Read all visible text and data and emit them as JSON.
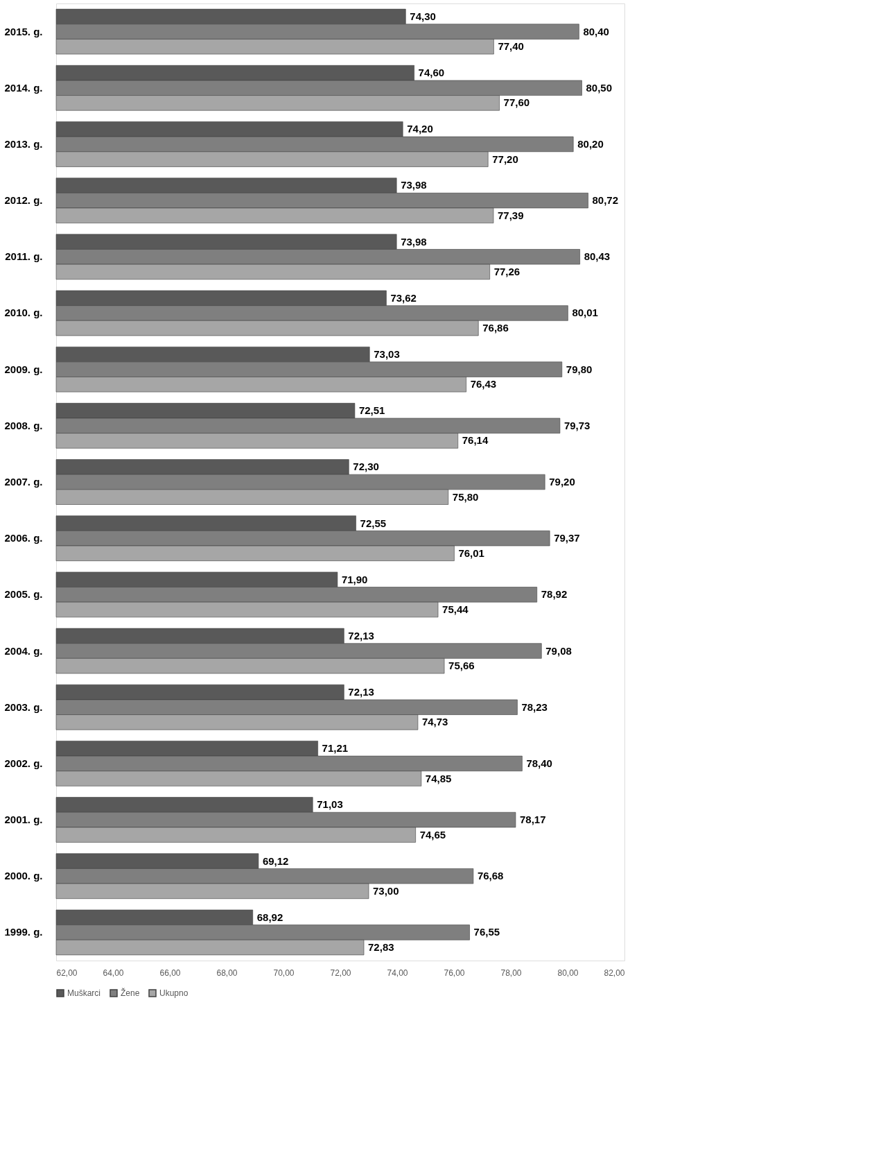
{
  "chart_data": {
    "type": "bar",
    "orientation": "horizontal",
    "legend": "bottom",
    "grid": false,
    "categories": [
      "2015. g.",
      "2014. g.",
      "2013. g.",
      "2012. g.",
      "2011. g.",
      "2010. g.",
      "2009. g.",
      "2008. g.",
      "2007. g.",
      "2006. g.",
      "2005. g.",
      "2004. g.",
      "2003. g.",
      "2002. g.",
      "2001. g.",
      "2000. g.",
      "1999. g."
    ],
    "xlim": [
      62,
      82
    ],
    "xticks": [
      {
        "value": 62,
        "label": "62,00"
      },
      {
        "value": 64,
        "label": "64,00"
      },
      {
        "value": 66,
        "label": "66,00"
      },
      {
        "value": 68,
        "label": "68,00"
      },
      {
        "value": 70,
        "label": "70,00"
      },
      {
        "value": 72,
        "label": "72,00"
      },
      {
        "value": 74,
        "label": "74,00"
      },
      {
        "value": 76,
        "label": "76,00"
      },
      {
        "value": 78,
        "label": "78,00"
      },
      {
        "value": 80,
        "label": "80,00"
      },
      {
        "value": 82,
        "label": "82,00"
      }
    ],
    "series": [
      {
        "name": "Muškarci",
        "color": "#595959",
        "values": [
          74.3,
          74.6,
          74.2,
          73.98,
          73.98,
          73.62,
          73.03,
          72.51,
          72.3,
          72.55,
          71.9,
          72.13,
          72.13,
          71.21,
          71.03,
          69.12,
          68.92
        ],
        "value_labels": [
          "74,30",
          "74,60",
          "74,20",
          "73,98",
          "73,98",
          "73,62",
          "73,03",
          "72,51",
          "72,30",
          "72,55",
          "71,90",
          "72,13",
          "72,13",
          "71,21",
          "71,03",
          "69,12",
          "68,92"
        ]
      },
      {
        "name": "Žene",
        "color": "#7f7f7f",
        "values": [
          80.4,
          80.5,
          80.2,
          80.72,
          80.43,
          80.01,
          79.8,
          79.73,
          79.2,
          79.37,
          78.92,
          79.08,
          78.23,
          78.4,
          78.17,
          76.68,
          76.55
        ],
        "value_labels": [
          "80,40",
          "80,50",
          "80,20",
          "80,72",
          "80,43",
          "80,01",
          "79,80",
          "79,73",
          "79,20",
          "79,37",
          "78,92",
          "79,08",
          "78,23",
          "78,40",
          "78,17",
          "76,68",
          "76,55"
        ]
      },
      {
        "name": "Ukupno",
        "color": "#a6a6a6",
        "values": [
          77.4,
          77.6,
          77.2,
          77.39,
          77.26,
          76.86,
          76.43,
          76.14,
          75.8,
          76.01,
          75.44,
          75.66,
          74.73,
          74.85,
          74.65,
          73.0,
          72.83
        ],
        "value_labels": [
          "77,40",
          "77,60",
          "77,20",
          "77,39",
          "77,26",
          "76,86",
          "76,43",
          "76,14",
          "75,80",
          "76,01",
          "75,44",
          "75,66",
          "74,73",
          "74,85",
          "74,65",
          "73,00",
          "72,83"
        ]
      }
    ]
  }
}
